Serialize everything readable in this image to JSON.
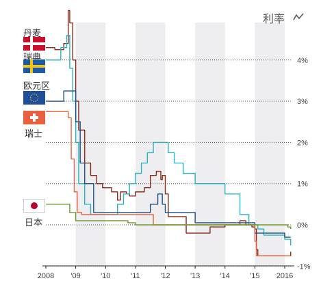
{
  "title": "利率",
  "title_icon": "chart-line-icon",
  "countries": [
    {
      "key": "dk",
      "label": "丹麦",
      "flag": "denmark-flag",
      "color": "#8b2a1a"
    },
    {
      "key": "se",
      "label": "瑞典",
      "flag": "sweden-flag",
      "color": "#27b5c2"
    },
    {
      "key": "eu",
      "label": "欧元区",
      "flag": "eu-flag",
      "color": "#1f4e85"
    },
    {
      "key": "ch",
      "label": "瑞士",
      "flag": "switzerland-flag",
      "color": "#e8613f"
    },
    {
      "key": "jp",
      "label": "日本",
      "flag": "japan-flag",
      "color": "#6a9a2a"
    }
  ],
  "chart_data": {
    "type": "line",
    "title": "利率",
    "xlabel": "",
    "ylabel": "",
    "x_ticks": [
      "2008",
      "'09",
      "'10",
      "'11",
      "'12",
      "'13",
      "'14",
      "'15",
      "2016"
    ],
    "y_ticks": [
      "4%",
      "3%",
      "2%",
      "1%",
      "0%",
      "-1%"
    ],
    "xlim": [
      2008.0,
      2016.4
    ],
    "ylim": [
      -1.0,
      5.2
    ],
    "grid": "horizontal-dotted",
    "shaded_years": [
      2009,
      2011,
      2013,
      2015
    ],
    "series": [
      {
        "name": "丹麦",
        "color": "#8b2a1a",
        "x": [
          2008.0,
          2008.3,
          2008.6,
          2008.75,
          2008.8,
          2008.9,
          2009.0,
          2009.1,
          2009.3,
          2009.5,
          2009.7,
          2009.9,
          2010.0,
          2010.2,
          2010.4,
          2010.5,
          2010.7,
          2010.8,
          2011.0,
          2011.3,
          2011.5,
          2011.7,
          2011.85,
          2011.9,
          2012.0,
          2012.1,
          2012.5,
          2012.7,
          2013.0,
          2013.5,
          2014.0,
          2014.5,
          2014.7,
          2014.9,
          2015.0,
          2015.05,
          2015.1,
          2015.5,
          2016.0,
          2016.2
        ],
        "y": [
          4.3,
          4.25,
          4.4,
          5.2,
          4.9,
          4.0,
          3.0,
          2.3,
          1.5,
          1.2,
          1.0,
          0.9,
          0.9,
          0.8,
          0.6,
          0.8,
          0.75,
          0.7,
          0.8,
          0.9,
          1.2,
          1.3,
          1.1,
          1.2,
          0.75,
          0.2,
          0.2,
          -0.2,
          -0.2,
          -0.05,
          0.0,
          0.1,
          0.0,
          -0.05,
          -0.1,
          -0.6,
          -0.75,
          -0.75,
          -0.75,
          -0.65
        ]
      },
      {
        "name": "瑞典",
        "color": "#27b5c2",
        "x": [
          2008.0,
          2008.3,
          2008.5,
          2008.7,
          2008.8,
          2008.9,
          2009.0,
          2009.1,
          2009.3,
          2009.5,
          2009.8,
          2010.0,
          2010.4,
          2010.6,
          2010.8,
          2011.0,
          2011.2,
          2011.4,
          2011.6,
          2011.8,
          2011.95,
          2012.1,
          2012.3,
          2012.6,
          2013.0,
          2014.0,
          2014.5,
          2014.8,
          2015.0,
          2015.1,
          2015.3,
          2016.0,
          2016.2
        ],
        "y": [
          4.0,
          4.0,
          4.3,
          4.6,
          3.8,
          3.0,
          2.0,
          1.0,
          0.5,
          0.25,
          0.25,
          0.25,
          0.5,
          0.75,
          1.0,
          1.25,
          1.5,
          1.75,
          2.0,
          2.0,
          2.0,
          1.75,
          1.5,
          1.25,
          1.0,
          0.75,
          0.25,
          0.0,
          0.0,
          -0.1,
          -0.25,
          -0.35,
          -0.5
        ]
      },
      {
        "name": "欧元区",
        "color": "#1f4e85",
        "x": [
          2008.0,
          2008.5,
          2008.6,
          2008.9,
          2009.0,
          2009.15,
          2009.3,
          2009.6,
          2010.0,
          2010.5,
          2011.0,
          2011.25,
          2011.5,
          2011.75,
          2011.9,
          2012.0,
          2012.5,
          2013.0,
          2013.5,
          2014.0,
          2014.4,
          2014.7,
          2015.0,
          2016.0,
          2016.2
        ],
        "y": [
          3.0,
          3.0,
          3.25,
          3.25,
          2.5,
          1.5,
          1.0,
          0.3,
          0.3,
          0.3,
          0.3,
          0.3,
          0.5,
          0.75,
          0.5,
          0.3,
          0.3,
          0.05,
          0.05,
          0.05,
          0.05,
          0.05,
          -0.2,
          -0.3,
          -0.3
        ]
      },
      {
        "name": "瑞士",
        "color": "#e8613f",
        "x": [
          2008.0,
          2008.6,
          2008.75,
          2008.85,
          2008.95,
          2009.05,
          2009.2,
          2009.5,
          2010.0,
          2011.0,
          2011.5,
          2011.6,
          2012.0,
          2013.0,
          2014.0,
          2014.8,
          2014.95,
          2015.0,
          2015.05,
          2015.5,
          2016.2
        ],
        "y": [
          2.75,
          2.75,
          2.6,
          1.6,
          0.8,
          0.3,
          0.25,
          0.25,
          0.25,
          0.25,
          0.25,
          0.0,
          0.0,
          0.0,
          0.0,
          0.0,
          0.0,
          -0.4,
          -0.75,
          -0.75,
          -0.75
        ]
      },
      {
        "name": "日本",
        "color": "#6a9a2a",
        "x": [
          2008.0,
          2008.6,
          2008.8,
          2008.9,
          2009.0,
          2010.0,
          2010.7,
          2010.75,
          2011.0,
          2012.0,
          2013.0,
          2014.0,
          2015.0,
          2016.0,
          2016.1,
          2016.2
        ],
        "y": [
          0.5,
          0.5,
          0.3,
          0.3,
          0.1,
          0.1,
          0.1,
          0.05,
          0.0,
          0.0,
          0.0,
          0.0,
          0.0,
          0.0,
          -0.05,
          -0.1
        ]
      }
    ]
  }
}
